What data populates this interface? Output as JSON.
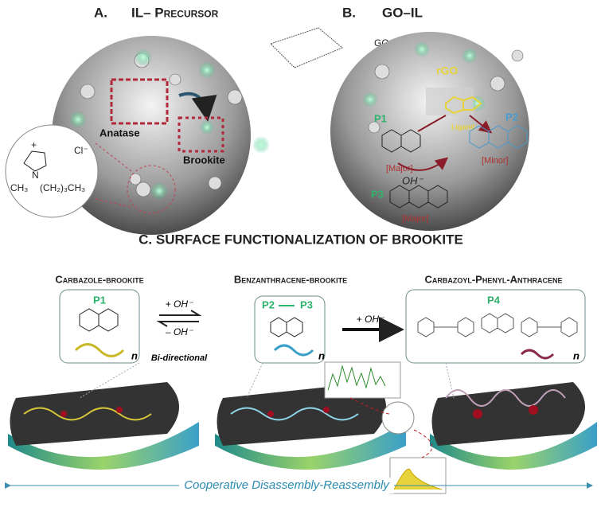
{
  "panel_a": {
    "label": "A.",
    "title": "IL– Precursor",
    "anatase": "Anatase",
    "brookite": "Brookite",
    "ionic_liquid": {
      "anion": "Cl⁻",
      "charge": "+",
      "nitrogen": "N",
      "methyl": "CH₃",
      "butyl": "(CH₂)₃CH₃"
    }
  },
  "panel_b": {
    "label": "B.",
    "title": "GO–IL",
    "go": "GO",
    "rgo": "rGO",
    "ligand": "Ligand",
    "hydroxide": "OH⁻",
    "p1": {
      "label": "P1",
      "yield": "[Major]"
    },
    "p2": {
      "label": "P2",
      "yield": "[Minor]"
    },
    "p3": {
      "label": "P3",
      "yield": "[Major]"
    }
  },
  "panel_c": {
    "title": "C. SURFACE FUNCTIONALIZATION OF BROOKITE",
    "stages": [
      {
        "title": "Carbazole-brookite",
        "products": [
          "P1"
        ],
        "repeat": "n"
      },
      {
        "title": "Benzanthracene-brookite",
        "products": [
          "P2",
          "P3"
        ],
        "repeat": "n"
      },
      {
        "title": "Carbazoyl-Phenyl-Anthracene",
        "products": [
          "P4"
        ],
        "repeat": "n"
      }
    ],
    "reactions": [
      {
        "forward": "+ OH⁻",
        "reverse": "– OH⁻",
        "note": "Bi-directional"
      },
      {
        "forward": "+ OH⁻"
      }
    ],
    "footer": "Cooperative Disassembly-Reassembly"
  }
}
